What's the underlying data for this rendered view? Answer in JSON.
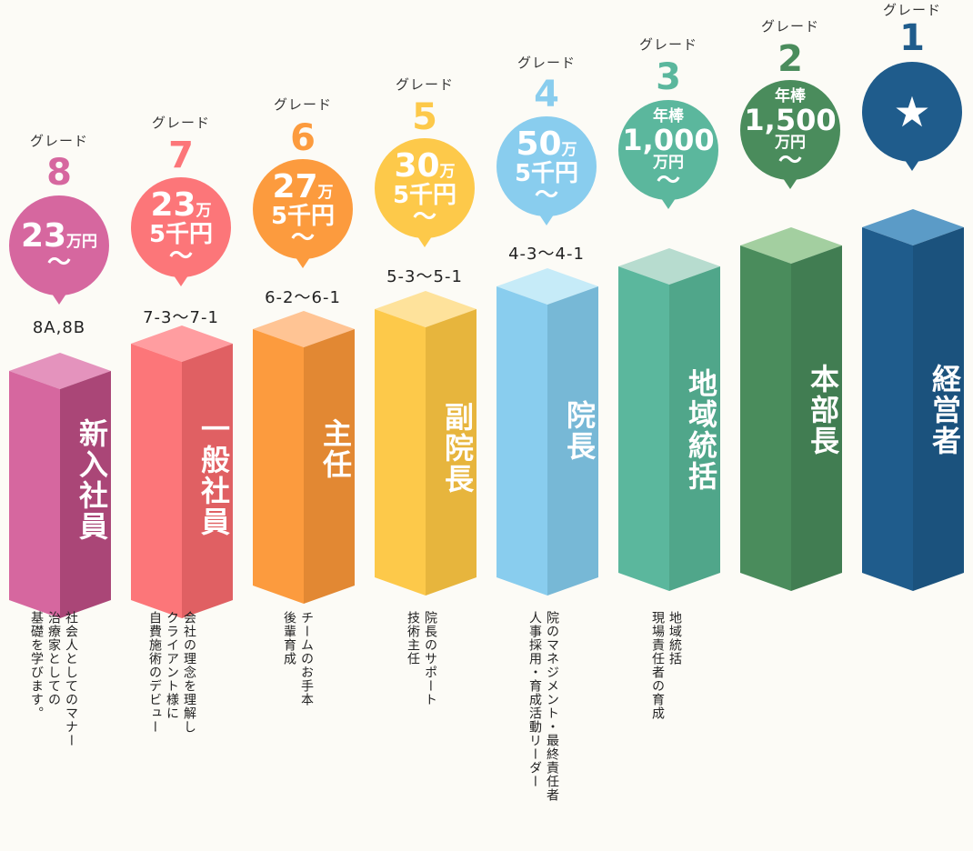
{
  "grades": [
    {
      "id": "g8",
      "grade_label": "グレード",
      "grade_number": "8",
      "salary_main": "23",
      "salary_unit": "万円",
      "salary_sub": "",
      "tilde": "〜",
      "salary_prefix": "",
      "range": "8A,8B",
      "title": "新入社員",
      "description": [
        "社会人としてのマナー",
        "治療家としての",
        "基礎を学びます。"
      ],
      "color_main": "#d6679f",
      "color_dark": "#b94d82",
      "color_light": "#e493bd"
    },
    {
      "id": "g7",
      "grade_label": "グレード",
      "grade_number": "7",
      "salary_main": "23",
      "salary_unit": "万",
      "salary_sub": "5千円",
      "tilde": "〜",
      "salary_prefix": "",
      "range": "7-3〜7-1",
      "title": "一般社員",
      "description": [
        "会社の理念を理解し",
        "クライアント様に",
        "自費施術のデビュー"
      ],
      "color_main": "#fc7679",
      "color_dark": "#f4696c",
      "color_light": "#ff9da0"
    },
    {
      "id": "g6",
      "grade_label": "グレード",
      "grade_number": "6",
      "salary_main": "27",
      "salary_unit": "万",
      "salary_sub": "5千円",
      "tilde": "〜",
      "salary_prefix": "",
      "range": "6-2〜6-1",
      "title": "主任",
      "description": [
        "チームのお手本",
        "後輩育成"
      ],
      "color_main": "#fc9b3e",
      "color_dark": "#f69438",
      "color_light": "#ffc494"
    },
    {
      "id": "g5",
      "grade_label": "グレード",
      "grade_number": "5",
      "salary_main": "30",
      "salary_unit": "万",
      "salary_sub": "5千円",
      "tilde": "〜",
      "salary_prefix": "",
      "range": "5-3〜5-1",
      "title": "副院長",
      "description": [
        "院長のサポート",
        "技術主任"
      ],
      "color_main": "#fdc94a",
      "color_dark": "#fbc543",
      "color_light": "#fee29b"
    },
    {
      "id": "g4",
      "grade_label": "グレード",
      "grade_number": "4",
      "salary_main": "50",
      "salary_unit": "万",
      "salary_sub": "5千円",
      "tilde": "〜",
      "salary_prefix": "",
      "range": "4-3〜4-1",
      "title": "院長",
      "description": [
        "院のマネジメント・最終責任者",
        "人事採用・育成活動リーダー"
      ],
      "color_main": "#89cdee",
      "color_dark": "#82c8e9",
      "color_light": "#c6ebf8"
    },
    {
      "id": "g3",
      "grade_label": "グレード",
      "grade_number": "3",
      "salary_main": "1,000",
      "salary_unit": "万円",
      "salary_sub": "",
      "tilde": "〜",
      "salary_prefix": "年棒",
      "range": "",
      "title": "地域統括",
      "description": [
        "地域統括",
        "現場責任者の育成"
      ],
      "color_main": "#5bb79d",
      "color_dark": "#57b596",
      "color_light": "#b7dccf"
    },
    {
      "id": "g2",
      "grade_label": "グレード",
      "grade_number": "2",
      "salary_main": "1,500",
      "salary_unit": "万円",
      "salary_sub": "",
      "tilde": "〜",
      "salary_prefix": "年棒",
      "range": "",
      "title": "本部長",
      "description": [],
      "color_main": "#4a8c5c",
      "color_dark": "#478859",
      "color_light": "#a3cfa0"
    },
    {
      "id": "g1",
      "grade_label": "グレード",
      "grade_number": "1",
      "salary_main": "★",
      "salary_unit": "",
      "salary_sub": "",
      "tilde": "",
      "salary_prefix": "",
      "range": "",
      "title": "経営者",
      "description": [],
      "color_main": "#1f5c8c",
      "color_dark": "#1e5a88",
      "color_light": "#5b9bc7"
    }
  ]
}
